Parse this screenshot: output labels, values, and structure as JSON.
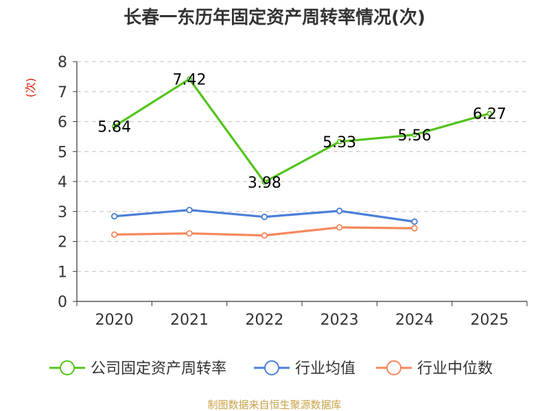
{
  "chart_data": {
    "type": "line",
    "title": "长春一东历年固定资产周转率情况(次)",
    "ylabel": "(次)",
    "xlabel": "",
    "ylim": [
      0,
      8
    ],
    "yticks": [
      0,
      1,
      2,
      3,
      4,
      5,
      6,
      7,
      8
    ],
    "grid": true,
    "legend_position": "bottom",
    "categories": [
      "2020",
      "2021",
      "2022",
      "2023",
      "2024",
      "2025"
    ],
    "series": [
      {
        "name": "公司固定资产周转率",
        "color": "#52c41a",
        "values": [
          5.84,
          7.42,
          3.98,
          5.33,
          5.56,
          6.27
        ],
        "labels": [
          "5.84",
          "7.42",
          "3.98",
          "5.33",
          "5.56",
          "6.27"
        ]
      },
      {
        "name": "行业均值",
        "color": "#4a7fd8",
        "values": [
          2.84,
          3.05,
          2.82,
          3.02,
          2.66,
          null
        ]
      },
      {
        "name": "行业中位数",
        "color": "#f5875b",
        "values": [
          2.23,
          2.27,
          2.2,
          2.47,
          2.44,
          null
        ]
      }
    ],
    "source": "制图数据来自恒生聚源数据库"
  }
}
